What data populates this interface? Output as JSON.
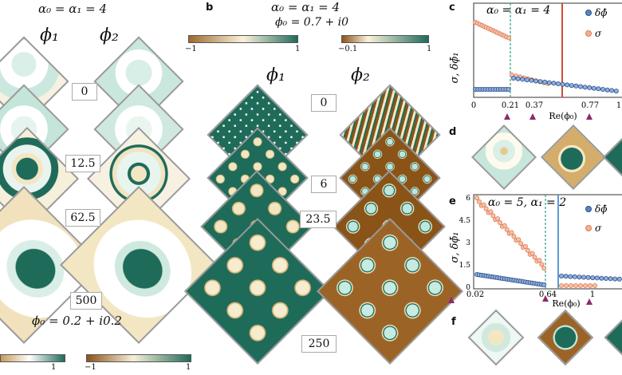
{
  "panel_a": {
    "header": "α₀ = α₁ = 4",
    "field1": "ϕ₁",
    "field2": "ϕ₂",
    "times": [
      "0",
      "12.5",
      "62.5",
      "500"
    ],
    "phi0": "ϕ₀ = 0.2 + i0.2",
    "cbar1_ticks": [
      "1"
    ],
    "cbar2_ticks": [
      "−1",
      "1"
    ]
  },
  "panel_b": {
    "letter": "b",
    "header1": "α₀ = α₁ = 4",
    "header2": "ϕ₀ = 0.7 + i0",
    "field1": "ϕ₁",
    "field2": "ϕ₂",
    "times": [
      "0",
      "6",
      "23.5",
      "250"
    ],
    "cbar1_ticks": [
      "−1",
      "1"
    ],
    "cbar2_ticks": [
      "−0.1",
      "1"
    ]
  },
  "panel_c": {
    "letter": "c",
    "header": "α₀ = α₁ = 4",
    "ylabel": "σ, δϕ̄₁",
    "xlabel": "Re(ϕ₀)",
    "legend": [
      "δϕ̄",
      "σ"
    ],
    "xticks": [
      "0",
      "0.21",
      "0.37",
      "0.77",
      "1"
    ]
  },
  "panel_d": {
    "letter": "d"
  },
  "panel_e": {
    "letter": "e",
    "header": "α₀ = 5,  α₁ = 2",
    "ylabel": "σ, δϕ̄₁",
    "xlabel": "Re(ϕ₀)",
    "legend": [
      "δϕ̄",
      "σ"
    ],
    "yticks": [
      "0",
      "1.5",
      "3",
      "4.5",
      "6"
    ],
    "xticks": [
      "0.02",
      "0.64",
      "1"
    ]
  },
  "panel_f": {
    "letter": "f"
  },
  "colors": {
    "teal": "#1f6b5a",
    "mint": "#bfe6dc",
    "brown": "#8a5418",
    "cream": "#f3e7c3",
    "orange": "#e07b4f",
    "blue": "#5b86c5",
    "red_line": "#d24a34",
    "purple": "#8b2a6e"
  }
}
